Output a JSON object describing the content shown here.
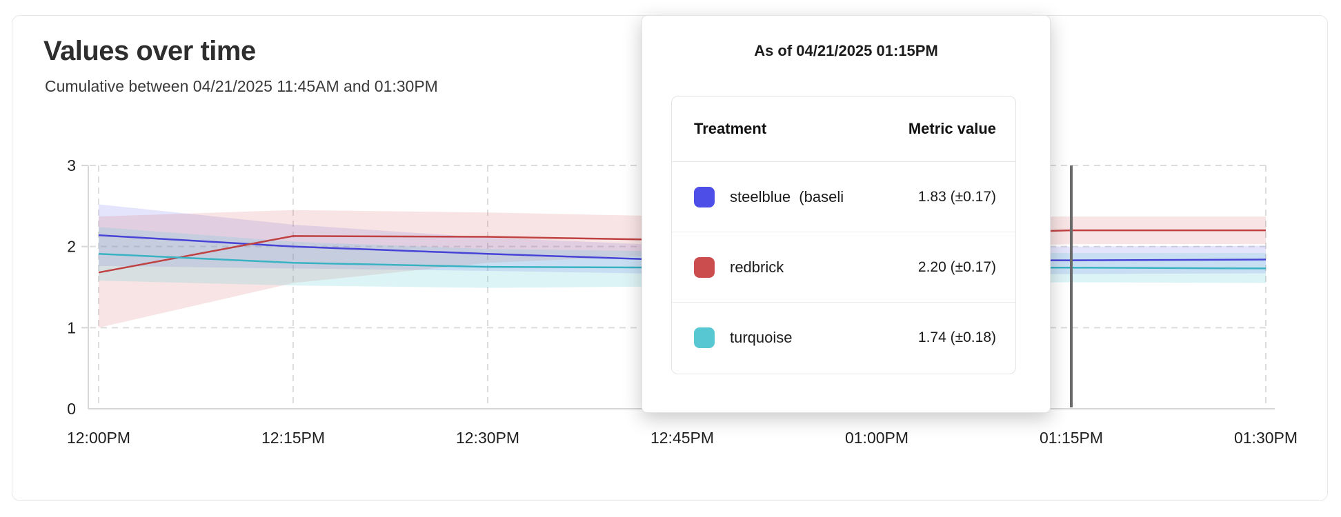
{
  "header": {
    "title": "Values over time",
    "subtitle": "Cumulative between 04/21/2025 11:45AM and 01:30PM"
  },
  "tooltip": {
    "title": "As of 04/21/2025 01:15PM",
    "columns": [
      "Treatment",
      "Metric value"
    ],
    "rows": [
      {
        "label": "steelblue  (baseli",
        "value": "1.83 (±0.17)",
        "color": "#4d4de8"
      },
      {
        "label": "redbrick",
        "value": "2.20 (±0.17)",
        "color": "#cc4d4d"
      },
      {
        "label": "turquoise",
        "value": "1.74 (±0.18)",
        "color": "#57c7d1"
      }
    ]
  },
  "chart_data": {
    "type": "line",
    "title": "Values over time",
    "subtitle": "Cumulative between 04/21/2025 11:45AM and 01:30PM",
    "x": [
      "12:00PM",
      "12:15PM",
      "12:30PM",
      "12:45PM",
      "01:00PM",
      "01:15PM",
      "01:30PM"
    ],
    "series": [
      {
        "name": "steelblue (baseline)",
        "color": "#4743d6",
        "band_color": "rgba(90,90,235,0.16)",
        "values": [
          2.14,
          2.0,
          1.91,
          1.83,
          1.83,
          1.83,
          1.84
        ],
        "lower": [
          1.76,
          1.73,
          1.7,
          1.66,
          1.66,
          1.66,
          1.67
        ],
        "upper": [
          2.52,
          2.27,
          2.11,
          2.01,
          2.0,
          2.0,
          2.01
        ]
      },
      {
        "name": "redbrick",
        "color": "#bf4141",
        "band_color": "rgba(217,106,106,0.18)",
        "values": [
          1.68,
          2.13,
          2.12,
          2.08,
          2.14,
          2.2,
          2.2
        ],
        "lower": [
          1.0,
          1.55,
          1.8,
          1.9,
          1.97,
          2.03,
          2.03
        ],
        "upper": [
          2.37,
          2.45,
          2.42,
          2.37,
          2.37,
          2.37,
          2.37
        ]
      },
      {
        "name": "turquoise",
        "color": "#39b2c4",
        "band_color": "rgba(99,205,216,0.22)",
        "values": [
          1.91,
          1.8,
          1.75,
          1.74,
          1.74,
          1.74,
          1.73
        ],
        "lower": [
          1.58,
          1.52,
          1.49,
          1.51,
          1.53,
          1.56,
          1.55
        ],
        "upper": [
          2.24,
          2.06,
          1.97,
          1.94,
          1.93,
          1.92,
          1.92
        ]
      }
    ],
    "ylim": [
      0,
      3
    ],
    "yticks": [
      0,
      1,
      2,
      3
    ],
    "xlabel": "",
    "ylabel": "",
    "grid": true,
    "legend_position": "tooltip",
    "cursor_x": "01:15PM"
  }
}
